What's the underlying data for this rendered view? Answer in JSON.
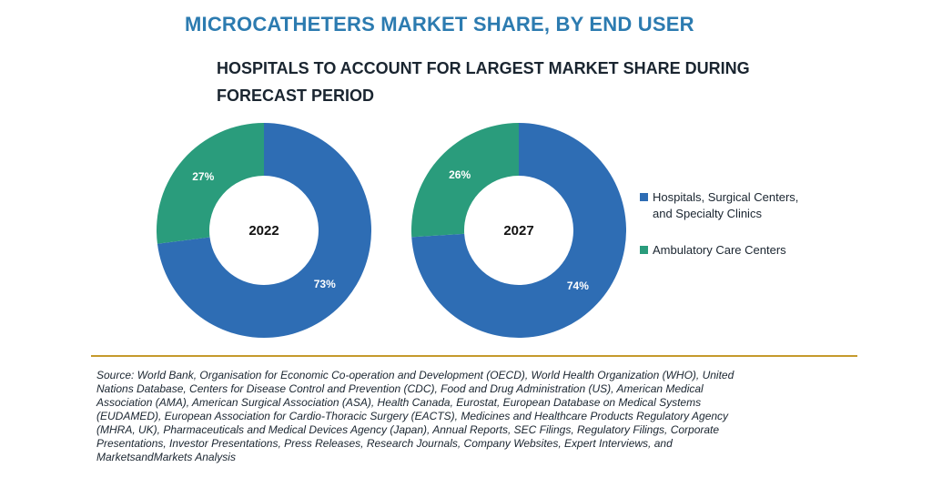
{
  "title": "MICROCATHETERS MARKET SHARE, BY END USER",
  "subtitle": {
    "lines": [
      "HOSPITALS TO ACCOUNT FOR LARGEST MARKET SHARE DURING",
      "FORECAST PERIOD"
    ]
  },
  "colors": {
    "hospitals": "#2E6DB4",
    "ambulatory": "#2A9C7C",
    "divider": "#C59A2C",
    "title": "#2C7BB0"
  },
  "legend": {
    "items": [
      {
        "lines": [
          "Hospitals, Surgical Centers,",
          "and Specialty Clinics"
        ],
        "color": "#2E6DB4"
      },
      {
        "lines": [
          "Ambulatory Care Centers"
        ],
        "color": "#2A9C7C"
      }
    ]
  },
  "chart_data": [
    {
      "type": "pie",
      "donut": true,
      "center_label": "2022",
      "slices": [
        {
          "name": "Hospitals, Surgical Centers, and Specialty Clinics",
          "value": 73,
          "label": "73%"
        },
        {
          "name": "Ambulatory Care Centers",
          "value": 27,
          "label": "27%"
        }
      ]
    },
    {
      "type": "pie",
      "donut": true,
      "center_label": "2027",
      "slices": [
        {
          "name": "Hospitals, Surgical Centers, and Specialty Clinics",
          "value": 74,
          "label": "74%"
        },
        {
          "name": "Ambulatory Care Centers",
          "value": 26,
          "label": "26%"
        }
      ]
    }
  ],
  "source": {
    "lines": [
      "Source: World Bank, Organisation for Economic Co-operation and Development (OECD), World Health Organization (WHO), United",
      "Nations Database, Centers for Disease Control and Prevention (CDC), Food and Drug Administration (US), American Medical",
      "Association (AMA), American Surgical Association (ASA), Health Canada, Eurostat, European Database on Medical Systems",
      "(EUDAMED), European Association for Cardio-Thoracic Surgery (EACTS), Medicines and Healthcare Products Regulatory Agency",
      "(MHRA, UK), Pharmaceuticals and Medical Devices Agency (Japan), Annual Reports, SEC Filings, Regulatory Filings, Corporate",
      "Presentations, Investor Presentations, Press Releases, Research Journals, Company Websites, Expert Interviews, and",
      "MarketsandMarkets Analysis"
    ]
  }
}
